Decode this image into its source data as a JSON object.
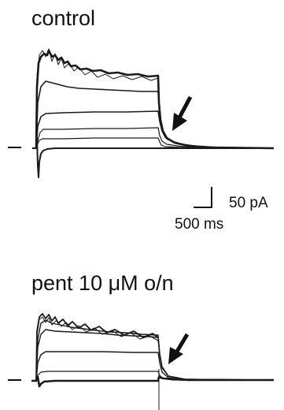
{
  "panels": [
    {
      "id": "control",
      "label": "control"
    },
    {
      "id": "pent",
      "label": "pent 10 μM o/n"
    }
  ],
  "scale_bar": {
    "current_label": "50 pA",
    "time_label": "500 ms"
  },
  "colors": {
    "trace": "#1a1a1a",
    "text": "#111111",
    "background": "#ffffff"
  },
  "icons": [
    "arrow-icon",
    "baseline-marker-icon"
  ]
}
